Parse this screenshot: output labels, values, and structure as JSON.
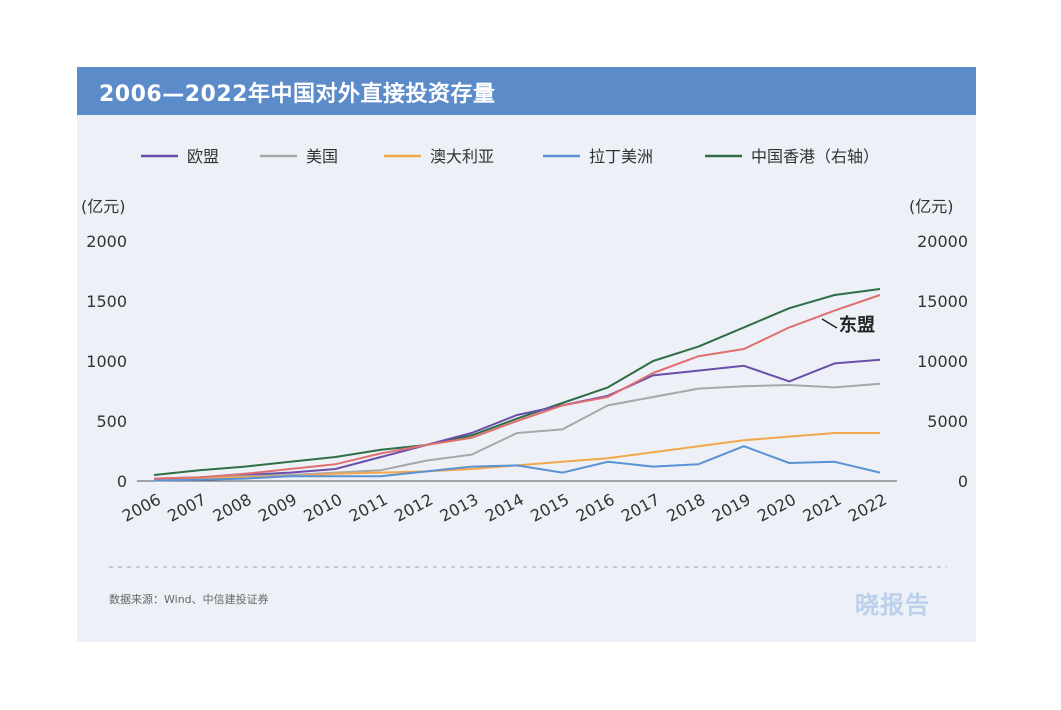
{
  "title": "2006—2022年中国对外直接投资存量",
  "source": "数据来源：Wind、中信建投证券",
  "watermark": "晓报告",
  "annotation": "东盟",
  "chart_data": {
    "type": "line",
    "title": "2006—2022年中国对外直接投资存量",
    "categories": [
      "2006",
      "2007",
      "2008",
      "2009",
      "2010",
      "2011",
      "2012",
      "2013",
      "2014",
      "2015",
      "2016",
      "2017",
      "2018",
      "2019",
      "2020",
      "2021",
      "2022"
    ],
    "left_unit": "(亿元)",
    "right_unit": "(亿元)",
    "y_left": {
      "range": [
        0,
        2000
      ],
      "ticks": [
        0,
        500,
        1000,
        1500,
        2000
      ]
    },
    "y_right": {
      "range": [
        0,
        20000
      ],
      "ticks": [
        0,
        5000,
        10000,
        15000,
        20000
      ]
    },
    "grid": false,
    "legend_position": "top",
    "series": [
      {
        "name": "欧盟",
        "color": "#6a4faa",
        "axis": "left",
        "values": [
          20,
          30,
          50,
          70,
          100,
          200,
          300,
          400,
          550,
          630,
          710,
          880,
          920,
          960,
          830,
          980,
          1010
        ]
      },
      {
        "name": "美国",
        "color": "#a7a7a7",
        "axis": "left",
        "values": [
          20,
          30,
          40,
          50,
          70,
          90,
          170,
          220,
          400,
          430,
          630,
          700,
          770,
          790,
          800,
          780,
          810
        ]
      },
      {
        "name": "澳大利亚",
        "color": "#f2a84a",
        "axis": "left",
        "values": [
          10,
          20,
          30,
          40,
          60,
          70,
          80,
          100,
          130,
          160,
          190,
          240,
          290,
          340,
          370,
          400,
          400
        ]
      },
      {
        "name": "拉丁美洲",
        "color": "#5a92d4",
        "axis": "left",
        "values": [
          5,
          10,
          20,
          40,
          40,
          40,
          80,
          120,
          130,
          70,
          160,
          120,
          140,
          290,
          150,
          160,
          70
        ]
      },
      {
        "name": "中国香港（右轴）",
        "color": "#2f6e46",
        "axis": "right",
        "values": [
          500,
          900,
          1200,
          1600,
          2000,
          2600,
          3000,
          3800,
          5200,
          6500,
          7800,
          10000,
          11200,
          12800,
          14400,
          15500,
          16000
        ]
      },
      {
        "name": "东盟",
        "color": "#e07070",
        "axis": "left",
        "legend": false,
        "values": [
          20,
          30,
          60,
          100,
          140,
          230,
          300,
          360,
          500,
          630,
          700,
          900,
          1040,
          1100,
          1280,
          1420,
          1550
        ]
      }
    ]
  }
}
